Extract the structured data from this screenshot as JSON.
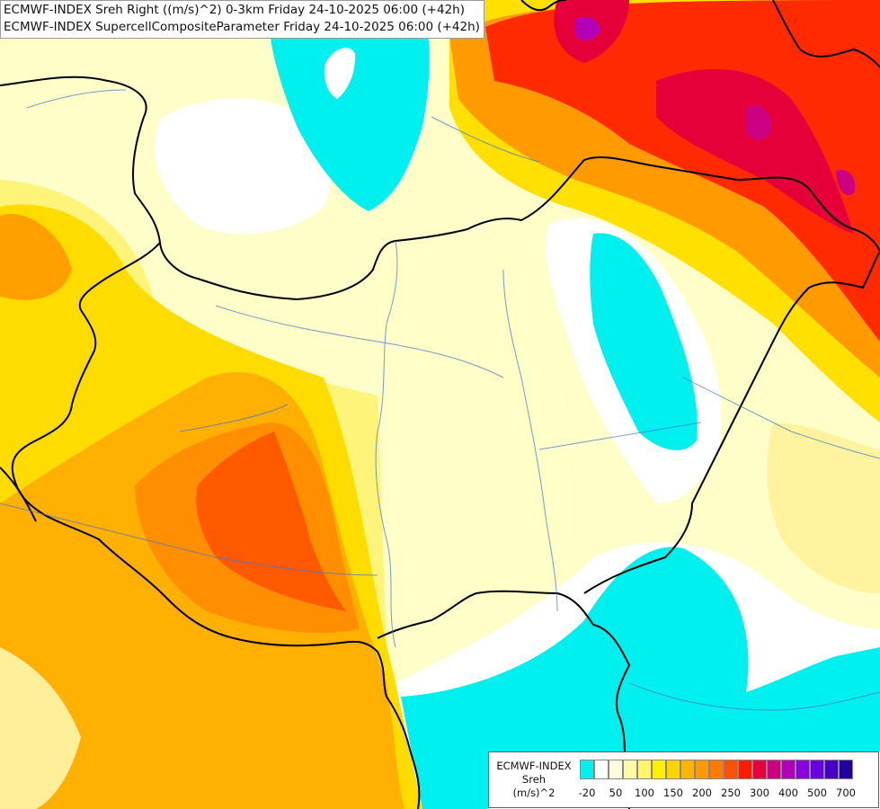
{
  "header": {
    "line1": "ECMWF-INDEX Sreh Right ((m/s)^2) 0-3km Friday 24-10-2025 06:00 (+42h)",
    "line2": "ECMWF-INDEX SupercellCompositeParameter Friday 24-10-2025 06:00 (+42h)"
  },
  "legend": {
    "title_lines": [
      "ECMWF-INDEX",
      "Sreh",
      "(m/s)^2"
    ],
    "colors": [
      "#00f0f0",
      "#ffffff",
      "#fffde0",
      "#fff9a8",
      "#fff56a",
      "#ffef00",
      "#ffd400",
      "#ffb400",
      "#ff9a00",
      "#ff7a00",
      "#ff4f00",
      "#ff1a00",
      "#e8003c",
      "#cc0080",
      "#b000b8",
      "#8a00e0",
      "#6a00e0",
      "#4400c4",
      "#2200a0"
    ],
    "ticks": [
      "-20",
      "50",
      "100",
      "150",
      "200",
      "250",
      "300",
      "400",
      "500",
      "700"
    ]
  }
}
